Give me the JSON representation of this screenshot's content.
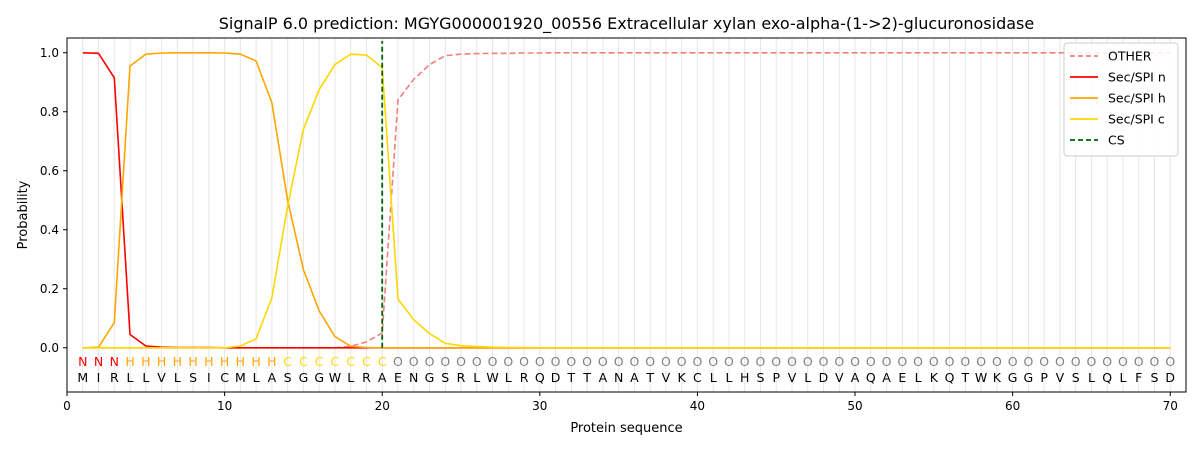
{
  "chart_data": {
    "type": "line",
    "title": "SignalP 6.0 prediction: MGYG000001920_00556 Extracellular xylan exo-alpha-(1->2)-glucuronosidase",
    "xlabel": "Protein sequence",
    "ylabel": "Probability",
    "xlim": [
      0,
      71
    ],
    "ylim": [
      -0.15,
      1.05
    ],
    "xticks": [
      0,
      10,
      20,
      30,
      40,
      50,
      60,
      70
    ],
    "yticks": [
      0.0,
      0.2,
      0.4,
      0.6,
      0.8,
      1.0
    ],
    "xtick_labels": [
      "0",
      "10",
      "20",
      "30",
      "40",
      "50",
      "60",
      "70"
    ],
    "ytick_labels": [
      "0.0",
      "0.2",
      "0.4",
      "0.6",
      "0.8",
      "1.0"
    ],
    "grid": "vertical lines at each residue position",
    "legend_position": "top-right",
    "sequence": [
      "M",
      "I",
      "R",
      "L",
      "L",
      "V",
      "L",
      "S",
      "I",
      "C",
      "M",
      "L",
      "A",
      "S",
      "G",
      "G",
      "W",
      "L",
      "R",
      "A",
      "E",
      "N",
      "G",
      "S",
      "R",
      "L",
      "W",
      "L",
      "R",
      "Q",
      "D",
      "T",
      "T",
      "A",
      "N",
      "A",
      "T",
      "V",
      "K",
      "C",
      "L",
      "L",
      "H",
      "S",
      "P",
      "V",
      "L",
      "D",
      "V",
      "A",
      "Q",
      "A",
      "E",
      "L",
      "K",
      "Q",
      "T",
      "W",
      "K",
      "G",
      "G",
      "P",
      "V",
      "S",
      "L",
      "Q",
      "L",
      "F",
      "S",
      "D"
    ],
    "region_labels": [
      "N",
      "N",
      "N",
      "H",
      "H",
      "H",
      "H",
      "H",
      "H",
      "H",
      "H",
      "H",
      "H",
      "C",
      "C",
      "C",
      "C",
      "C",
      "C",
      "C",
      "O",
      "O",
      "O",
      "O",
      "O",
      "O",
      "O",
      "O",
      "O",
      "O",
      "O",
      "O",
      "O",
      "O",
      "O",
      "O",
      "O",
      "O",
      "O",
      "O",
      "O",
      "O",
      "O",
      "O",
      "O",
      "O",
      "O",
      "O",
      "O",
      "O",
      "O",
      "O",
      "O",
      "O",
      "O",
      "O",
      "O",
      "O",
      "O",
      "O",
      "O",
      "O",
      "O",
      "O",
      "O",
      "O",
      "O",
      "O",
      "O",
      "O"
    ],
    "region_colors": {
      "N": "#ff0000",
      "H": "#ffa500",
      "C": "#ffd700",
      "O": "#808080"
    },
    "x": [
      1,
      2,
      3,
      4,
      5,
      6,
      7,
      8,
      9,
      10,
      11,
      12,
      13,
      14,
      15,
      16,
      17,
      18,
      19,
      20,
      21,
      22,
      23,
      24,
      25,
      26,
      27,
      28,
      29,
      30,
      31,
      32,
      33,
      34,
      35,
      36,
      37,
      38,
      39,
      40,
      41,
      42,
      43,
      44,
      45,
      46,
      47,
      48,
      49,
      50,
      51,
      52,
      53,
      54,
      55,
      56,
      57,
      58,
      59,
      60,
      61,
      62,
      63,
      64,
      65,
      66,
      67,
      68,
      69,
      70
    ],
    "series": [
      {
        "name": "OTHER",
        "color": "#f08080",
        "style": "dashed",
        "values": [
          0,
          0,
          0,
          0,
          0,
          0,
          0,
          0,
          0,
          0,
          0,
          0,
          0,
          0,
          0,
          0,
          0,
          0.005,
          0.02,
          0.05,
          0.84,
          0.91,
          0.96,
          0.99,
          0.995,
          0.997,
          0.998,
          0.998,
          0.999,
          0.999,
          1,
          1,
          1,
          1,
          1,
          1,
          1,
          1,
          1,
          1,
          1,
          1,
          1,
          1,
          1,
          1,
          1,
          1,
          1,
          1,
          1,
          1,
          1,
          1,
          1,
          1,
          1,
          1,
          1,
          1,
          1,
          1,
          1,
          1,
          1,
          1,
          1,
          1,
          1,
          1
        ]
      },
      {
        "name": "Sec/SPI n",
        "color": "#ff0000",
        "style": "solid",
        "values": [
          1.0,
          0.998,
          0.915,
          0.045,
          0.006,
          0.002,
          0.001,
          0.001,
          0.001,
          0,
          0,
          0,
          0,
          0,
          0,
          0,
          0,
          0,
          0,
          0,
          0,
          0,
          0,
          0,
          0,
          0,
          0,
          0,
          0,
          0,
          0,
          0,
          0,
          0,
          0,
          0,
          0,
          0,
          0,
          0,
          0,
          0,
          0,
          0,
          0,
          0,
          0,
          0,
          0,
          0,
          0,
          0,
          0,
          0,
          0,
          0,
          0,
          0,
          0,
          0,
          0,
          0,
          0,
          0,
          0,
          0,
          0,
          0,
          0,
          0
        ]
      },
      {
        "name": "Sec/SPI h",
        "color": "#ffa500",
        "style": "solid",
        "values": [
          0,
          0.002,
          0.085,
          0.955,
          0.995,
          0.999,
          1.0,
          1.0,
          1.0,
          0.999,
          0.995,
          0.972,
          0.83,
          0.5,
          0.265,
          0.125,
          0.038,
          0.005,
          0.001,
          0,
          0,
          0,
          0,
          0,
          0,
          0,
          0,
          0,
          0,
          0,
          0,
          0,
          0,
          0,
          0,
          0,
          0,
          0,
          0,
          0,
          0,
          0,
          0,
          0,
          0,
          0,
          0,
          0,
          0,
          0,
          0,
          0,
          0,
          0,
          0,
          0,
          0,
          0,
          0,
          0,
          0,
          0,
          0,
          0,
          0,
          0,
          0,
          0,
          0,
          0
        ]
      },
      {
        "name": "Sec/SPI c",
        "color": "#ffd700",
        "style": "solid",
        "values": [
          0,
          0,
          0,
          0,
          0,
          0,
          0,
          0,
          0,
          0,
          0.006,
          0.03,
          0.17,
          0.48,
          0.74,
          0.875,
          0.96,
          0.995,
          0.992,
          0.95,
          0.165,
          0.095,
          0.048,
          0.015,
          0.007,
          0.004,
          0.002,
          0.001,
          0.001,
          0,
          0,
          0,
          0,
          0,
          0,
          0,
          0,
          0,
          0,
          0,
          0,
          0,
          0,
          0,
          0,
          0,
          0,
          0,
          0,
          0,
          0,
          0,
          0,
          0,
          0,
          0,
          0,
          0,
          0,
          0,
          0,
          0,
          0,
          0,
          0,
          0,
          0,
          0,
          0,
          0
        ]
      },
      {
        "name": "CS",
        "color": "#006400",
        "style": "dashed",
        "vertical_at": 20
      }
    ]
  }
}
